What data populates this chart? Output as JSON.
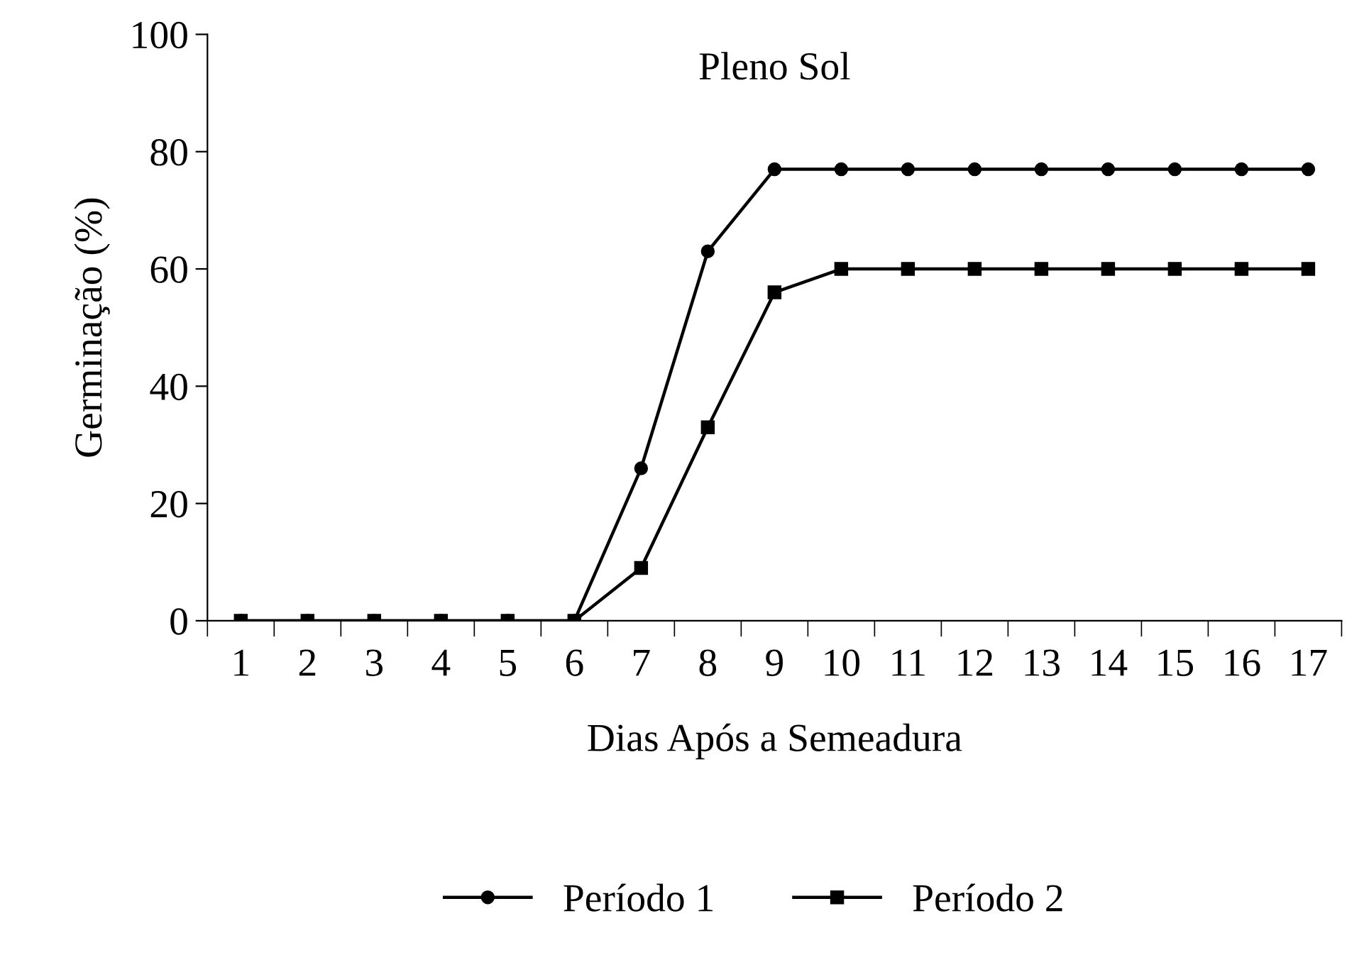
{
  "chart_data": {
    "type": "line",
    "title": "Pleno Sol",
    "xlabel": "Dias Após a Semeadura",
    "ylabel": "Germinação (%)",
    "categories": [
      "1",
      "2",
      "3",
      "4",
      "5",
      "6",
      "7",
      "8",
      "9",
      "10",
      "11",
      "12",
      "13",
      "14",
      "15",
      "16",
      "17"
    ],
    "series": [
      {
        "name": "Período 1",
        "color": "#000000",
        "marker": "circle",
        "values": [
          0,
          0,
          0,
          0,
          0,
          0,
          26,
          63,
          77,
          77,
          77,
          77,
          77,
          77,
          77,
          77,
          77
        ]
      },
      {
        "name": "Período 2",
        "color": "#000000",
        "marker": "square",
        "values": [
          0,
          0,
          0,
          0,
          0,
          0,
          9,
          33,
          56,
          60,
          60,
          60,
          60,
          60,
          60,
          60,
          60
        ]
      }
    ],
    "ylim": [
      0,
      100
    ],
    "yticks": [
      0,
      20,
      40,
      60,
      80,
      100
    ],
    "grid": false,
    "legend": "bottom",
    "line_style": "solid"
  }
}
